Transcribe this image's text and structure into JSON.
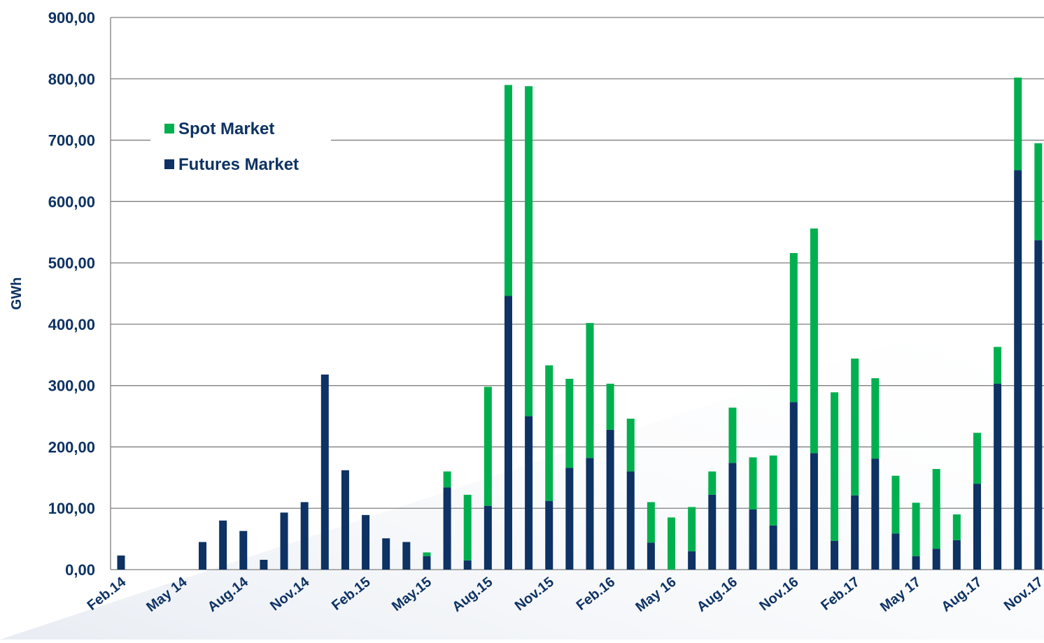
{
  "chart_data": {
    "type": "stacked_bar",
    "y_axis_label": "GWh",
    "categories": [
      "Feb.14",
      null,
      null,
      "May 14",
      null,
      null,
      "Aug.14",
      null,
      null,
      "Nov.14",
      null,
      null,
      "Feb.15",
      null,
      null,
      "May.15",
      null,
      null,
      "Aug.15",
      null,
      null,
      "Nov.15",
      null,
      null,
      "Feb.16",
      null,
      null,
      "May 16",
      null,
      null,
      "Aug.16",
      null,
      null,
      "Nov.16",
      null,
      null,
      "Feb.17",
      null,
      null,
      "May 17",
      null,
      null,
      "Aug.17",
      null,
      null,
      "Nov.17"
    ],
    "series": [
      {
        "name": "Futures Market",
        "color": "#0d3263",
        "values": [
          23,
          0,
          0,
          0,
          45,
          80,
          63,
          16,
          93,
          110,
          318,
          162,
          89,
          51,
          45,
          22,
          134,
          15,
          104,
          446,
          250,
          112,
          166,
          182,
          228,
          160,
          44,
          0,
          30,
          122,
          174,
          98,
          72,
          273,
          190,
          47,
          121,
          181,
          59,
          22,
          34,
          48,
          140,
          303,
          651,
          537
        ]
      },
      {
        "name": "Spot Market",
        "color": "#00b04f",
        "values": [
          0,
          0,
          0,
          0,
          0,
          0,
          0,
          0,
          0,
          0,
          0,
          0,
          0,
          0,
          0,
          6,
          26,
          107,
          194,
          344,
          538,
          221,
          145,
          220,
          75,
          86,
          66,
          85,
          72,
          38,
          90,
          85,
          114,
          243,
          366,
          242,
          223,
          131,
          94,
          87,
          130,
          42,
          83,
          60,
          151,
          158
        ]
      }
    ],
    "ylim": [
      0,
      900
    ],
    "yticks": [
      {
        "value": 0,
        "label": "0,00"
      },
      {
        "value": 100,
        "label": "100,00"
      },
      {
        "value": 200,
        "label": "200,00"
      },
      {
        "value": 300,
        "label": "300,00"
      },
      {
        "value": 400,
        "label": "400,00"
      },
      {
        "value": 500,
        "label": "500,00"
      },
      {
        "value": 600,
        "label": "600,00"
      },
      {
        "value": 700,
        "label": "700,00"
      },
      {
        "value": 800,
        "label": "800,00"
      },
      {
        "value": 900,
        "label": "900,00"
      }
    ],
    "grid": true,
    "legend": "upper left"
  }
}
